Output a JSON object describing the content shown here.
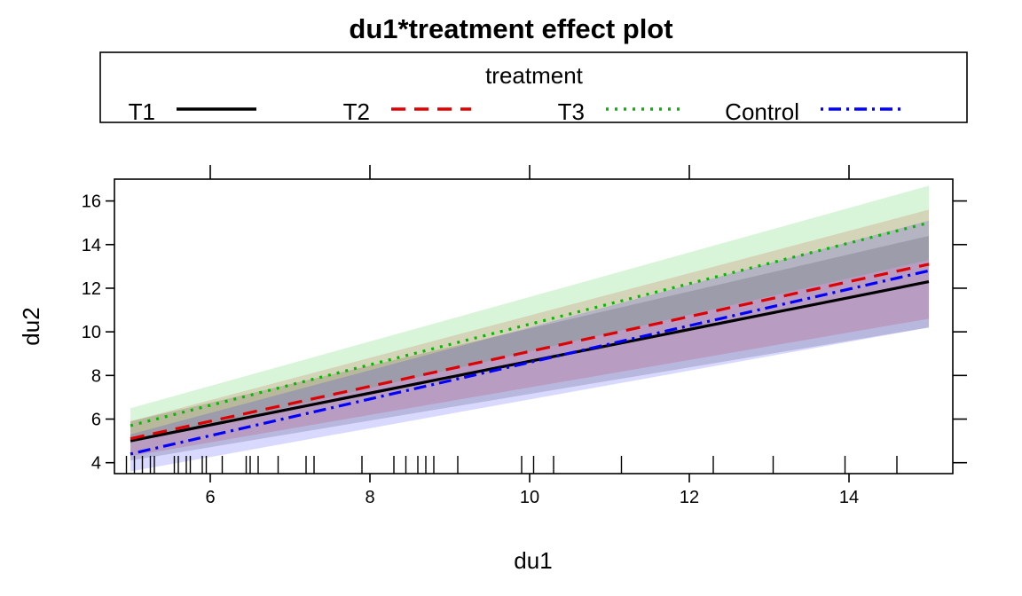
{
  "chart_data": {
    "type": "line",
    "title": "du1*treatment effect plot",
    "xlabel": "du1",
    "ylabel": "du2",
    "xlim": [
      4.8,
      15.3
    ],
    "ylim": [
      3.5,
      17.0
    ],
    "x_ticks": [
      6,
      8,
      10,
      12,
      14
    ],
    "y_ticks": [
      4,
      6,
      8,
      10,
      12,
      14,
      16
    ],
    "legend": {
      "title": "treatment",
      "position": "top"
    },
    "series": [
      {
        "name": "T1",
        "color": "#000000",
        "line_style": "solid",
        "x": [
          5,
          15
        ],
        "y": [
          5.0,
          12.3
        ],
        "lower": [
          4.1,
          10.2
        ],
        "upper": [
          5.9,
          14.4
        ]
      },
      {
        "name": "T2",
        "color": "#df0000",
        "line_style": "dashed",
        "x": [
          5,
          15
        ],
        "y": [
          5.1,
          13.1
        ],
        "lower": [
          4.3,
          10.6
        ],
        "upper": [
          5.9,
          15.6
        ]
      },
      {
        "name": "T3",
        "color": "#00bb00",
        "line_style": "dotted",
        "x": [
          5,
          15
        ],
        "y": [
          5.7,
          15.0
        ],
        "lower": [
          4.9,
          13.3
        ],
        "upper": [
          6.5,
          16.7
        ]
      },
      {
        "name": "Control",
        "color": "#0000ff",
        "line_style": "dotdash",
        "x": [
          5,
          15
        ],
        "y": [
          4.4,
          12.8
        ],
        "lower": [
          3.6,
          10.2
        ],
        "upper": [
          5.3,
          15.1
        ]
      }
    ],
    "rug_x": [
      4.95,
      5.05,
      5.15,
      5.25,
      5.3,
      5.55,
      5.6,
      5.7,
      5.75,
      5.9,
      5.95,
      6.15,
      6.45,
      6.5,
      6.6,
      6.85,
      7.2,
      7.3,
      7.9,
      8.3,
      8.45,
      8.6,
      8.7,
      8.8,
      9.1,
      9.9,
      10.05,
      10.3,
      11.15,
      12.3,
      13.05,
      13.95,
      14.6
    ]
  }
}
